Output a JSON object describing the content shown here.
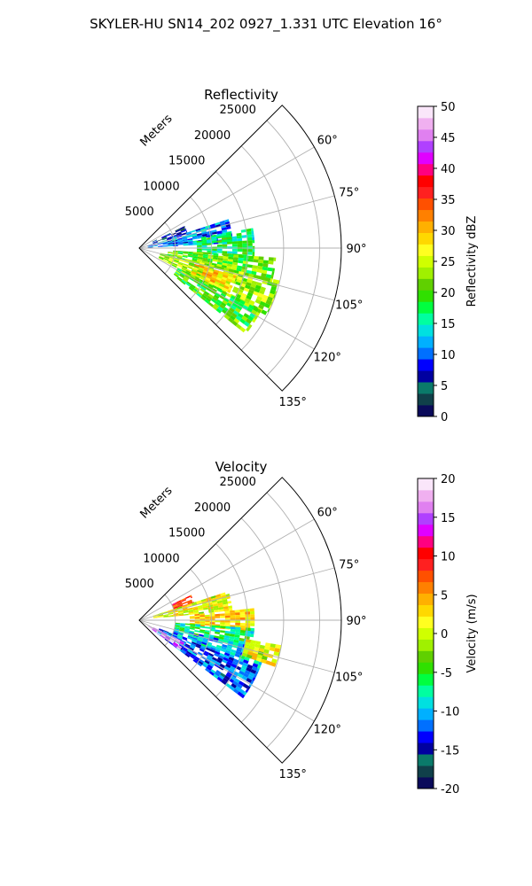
{
  "title": "SKYLER-HU  SN14_202  0927_1.331 UTC Elevation 16°",
  "chart_data": [
    {
      "type": "heatmap",
      "projection": "polar-sector",
      "title": "Reflectivity",
      "radial_label": "Meters",
      "radial_ticks": [
        5000,
        10000,
        15000,
        20000,
        25000
      ],
      "radial_tick_labels": [
        "5000",
        "10000",
        "15000",
        "20000",
        "25000"
      ],
      "r_range": [
        0,
        28000
      ],
      "azimuth_range_deg": [
        45,
        135
      ],
      "azimuth_ticks": [
        60,
        75,
        90,
        105,
        120,
        135
      ],
      "azimuth_tick_labels": [
        "60°",
        "75°",
        "90°",
        "105°",
        "120°",
        "135°"
      ],
      "grid": true,
      "colorbar": {
        "label": "Reflectivity dBZ",
        "range": [
          0,
          50
        ],
        "ticks": [
          0,
          5,
          10,
          15,
          20,
          25,
          30,
          35,
          40,
          45,
          50
        ],
        "tick_labels": [
          "0",
          "5",
          "10",
          "15",
          "20",
          "25",
          "30",
          "35",
          "40",
          "45",
          "50"
        ],
        "colors": [
          "#0a0a5a",
          "#10404a",
          "#0a7a6a",
          "#0000a0",
          "#0000ff",
          "#0070ff",
          "#00b0ff",
          "#00e0e0",
          "#00ffa0",
          "#00ff40",
          "#30e000",
          "#60d000",
          "#a0f000",
          "#d0ff00",
          "#ffff20",
          "#ffd800",
          "#ffb000",
          "#ff8000",
          "#ff5000",
          "#ff2020",
          "#ff0000",
          "#ff0080",
          "#e000ff",
          "#b040ff",
          "#e080f0",
          "#f0b0f0",
          "#fae6fa"
        ]
      },
      "echo_regions": [
        {
          "az": [
            64,
            72
          ],
          "r": [
            2000,
            7000
          ],
          "value": 5
        },
        {
          "az": [
            72,
            86
          ],
          "r": [
            1200,
            13000
          ],
          "value": 11
        },
        {
          "az": [
            80,
            94
          ],
          "r": [
            8000,
            16000
          ],
          "value": 17
        },
        {
          "az": [
            94,
            104
          ],
          "r": [
            4000,
            19000
          ],
          "value": 21
        },
        {
          "az": [
            103,
            117
          ],
          "r": [
            3000,
            20000
          ],
          "value": 23
        },
        {
          "az": [
            117,
            128
          ],
          "r": [
            6000,
            19000
          ],
          "value": 20
        },
        {
          "az": [
            106,
            116
          ],
          "r": [
            8000,
            14000
          ],
          "value": 28
        }
      ]
    },
    {
      "type": "heatmap",
      "projection": "polar-sector",
      "title": "Velocity",
      "radial_label": "Meters",
      "radial_ticks": [
        5000,
        10000,
        15000,
        20000,
        25000
      ],
      "radial_tick_labels": [
        "5000",
        "10000",
        "15000",
        "20000",
        "25000"
      ],
      "r_range": [
        0,
        28000
      ],
      "azimuth_range_deg": [
        45,
        135
      ],
      "azimuth_ticks": [
        60,
        75,
        90,
        105,
        120,
        135
      ],
      "azimuth_tick_labels": [
        "60°",
        "75°",
        "90°",
        "105°",
        "120°",
        "135°"
      ],
      "grid": true,
      "colorbar": {
        "label": "Velocity (m/s)",
        "range": [
          -20,
          20
        ],
        "ticks": [
          -20,
          -15,
          -10,
          -5,
          0,
          5,
          10,
          15,
          20
        ],
        "tick_labels": [
          "-20",
          "-15",
          "-10",
          "-5",
          "0",
          "5",
          "10",
          "15",
          "20"
        ],
        "colors": [
          "#0a0a5a",
          "#10404a",
          "#0a7a6a",
          "#0000a0",
          "#0000ff",
          "#0070ff",
          "#00b0ff",
          "#00e0e0",
          "#00ffa0",
          "#00ff40",
          "#30e000",
          "#60d000",
          "#a0f000",
          "#d0ff00",
          "#ffff20",
          "#ffd800",
          "#ffb000",
          "#ff8000",
          "#ff5000",
          "#ff2020",
          "#ff0000",
          "#ff0080",
          "#e000ff",
          "#b040ff",
          "#e080f0",
          "#f0b0f0",
          "#fae6fa"
        ]
      },
      "echo_regions": [
        {
          "az": [
            64,
            72
          ],
          "r": [
            5000,
            8000
          ],
          "value": 9
        },
        {
          "az": [
            72,
            84
          ],
          "r": [
            2000,
            13000
          ],
          "value": 1
        },
        {
          "az": [
            84,
            96
          ],
          "r": [
            7000,
            16000
          ],
          "value": 3
        },
        {
          "az": [
            94,
            104
          ],
          "r": [
            5000,
            16000
          ],
          "value": -7
        },
        {
          "az": [
            103,
            112
          ],
          "r": [
            5000,
            18000
          ],
          "value": -10
        },
        {
          "az": [
            112,
            126
          ],
          "r": [
            3000,
            18000
          ],
          "value": -12
        },
        {
          "az": [
            116,
            126
          ],
          "r": [
            1500,
            7000
          ],
          "value": 17
        },
        {
          "az": [
            100,
            108
          ],
          "r": [
            15000,
            20000
          ],
          "value": 1
        }
      ]
    }
  ]
}
